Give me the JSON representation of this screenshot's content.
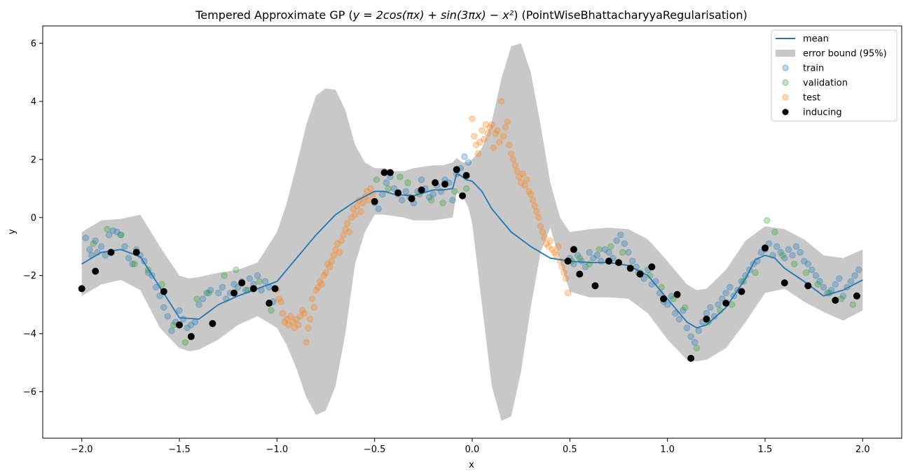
{
  "chart_data": {
    "type": "scatter",
    "title": "Tempered Approximate GP (y = 2cos(πx) + sin(3πx) − x²) (PointWiseBhattacharyyaRegularisation)",
    "title_parts": {
      "prefix": "Tempered Approximate GP (",
      "math": "y = 2cos(πx) + sin(3πx) − x²",
      "suffix": ") (PointWiseBhattacharyyaRegularisation)"
    },
    "xlabel": "x",
    "ylabel": "y",
    "xlim": [
      -2.2,
      2.2
    ],
    "ylim": [
      -7.6,
      6.6
    ],
    "xticks": [
      -2.0,
      -1.5,
      -1.0,
      -0.5,
      0.0,
      0.5,
      1.0,
      1.5,
      2.0
    ],
    "xtick_labels": [
      "−2.0",
      "−1.5",
      "−1.0",
      "−0.5",
      "0.0",
      "0.5",
      "1.0",
      "1.5",
      "2.0"
    ],
    "yticks": [
      -6,
      -4,
      -2,
      0,
      2,
      4,
      6
    ],
    "ytick_labels": [
      "−6",
      "−4",
      "−2",
      "0",
      "2",
      "4",
      "6"
    ],
    "grid": false,
    "legend_position": "top-right",
    "colors": {
      "mean": "#1f77b4",
      "band": "#c8c8c8",
      "train": "#1f77b4",
      "validation": "#2ca02c",
      "test": "#ff7f0e",
      "inducing": "#000000"
    },
    "legend": [
      {
        "name": "mean",
        "kind": "line",
        "color": "#1f77b4"
      },
      {
        "name": "error bound (95%)",
        "kind": "band",
        "color": "#c8c8c8"
      },
      {
        "name": "train",
        "kind": "scatter",
        "color": "#1f77b4"
      },
      {
        "name": "validation",
        "kind": "scatter",
        "color": "#2ca02c"
      },
      {
        "name": "test",
        "kind": "scatter",
        "color": "#ff7f0e"
      },
      {
        "name": "inducing",
        "kind": "marker",
        "color": "#000000"
      }
    ],
    "mean": {
      "name": "mean",
      "x": [
        -2.0,
        -1.9,
        -1.8,
        -1.7,
        -1.6,
        -1.5,
        -1.4,
        -1.3,
        -1.2,
        -1.1,
        -1.0,
        -0.9,
        -0.8,
        -0.7,
        -0.6,
        -0.5,
        -0.45,
        -0.4,
        -0.3,
        -0.2,
        -0.15,
        -0.1,
        -0.08,
        -0.06,
        -0.03,
        0.0,
        0.05,
        0.1,
        0.2,
        0.3,
        0.4,
        0.5,
        0.6,
        0.7,
        0.8,
        0.9,
        1.0,
        1.1,
        1.15,
        1.2,
        1.3,
        1.4,
        1.45,
        1.5,
        1.55,
        1.6,
        1.7,
        1.8,
        1.9,
        2.0
      ],
      "y": [
        -1.6,
        -1.2,
        -1.1,
        -1.35,
        -2.4,
        -3.45,
        -3.5,
        -3.0,
        -2.7,
        -2.45,
        -2.2,
        -1.4,
        -0.6,
        0.1,
        0.55,
        0.9,
        0.9,
        0.8,
        0.75,
        0.95,
        0.95,
        1.0,
        1.5,
        1.45,
        1.3,
        1.25,
        0.9,
        0.3,
        -0.5,
        -1.0,
        -1.4,
        -1.5,
        -1.55,
        -1.55,
        -1.65,
        -2.0,
        -2.8,
        -3.6,
        -3.8,
        -3.7,
        -3.1,
        -2.1,
        -1.45,
        -1.3,
        -1.4,
        -1.75,
        -2.2,
        -2.7,
        -2.5,
        -2.15
      ]
    },
    "error_band": {
      "name": "error bound (95%)",
      "x": [
        -2.0,
        -1.9,
        -1.8,
        -1.7,
        -1.6,
        -1.5,
        -1.45,
        -1.4,
        -1.3,
        -1.2,
        -1.1,
        -1.0,
        -0.95,
        -0.9,
        -0.85,
        -0.8,
        -0.75,
        -0.7,
        -0.65,
        -0.6,
        -0.55,
        -0.5,
        -0.45,
        -0.4,
        -0.35,
        -0.3,
        -0.2,
        -0.15,
        -0.1,
        -0.08,
        -0.05,
        -0.02,
        0.0,
        0.05,
        0.1,
        0.15,
        0.2,
        0.25,
        0.3,
        0.35,
        0.4,
        0.45,
        0.5,
        0.6,
        0.7,
        0.8,
        0.9,
        1.0,
        1.1,
        1.15,
        1.2,
        1.3,
        1.4,
        1.5,
        1.6,
        1.7,
        1.8,
        1.9,
        2.0
      ],
      "upper": [
        -0.5,
        -0.1,
        -0.05,
        0.1,
        -1.0,
        -2.0,
        -2.1,
        -2.05,
        -1.9,
        -1.8,
        -1.55,
        -0.5,
        0.5,
        1.8,
        3.2,
        4.2,
        4.45,
        4.4,
        3.7,
        2.5,
        1.9,
        1.7,
        1.7,
        1.6,
        1.6,
        1.7,
        1.8,
        1.8,
        1.9,
        2.05,
        1.9,
        1.9,
        2.0,
        2.4,
        3.3,
        4.8,
        5.9,
        6.0,
        5.0,
        3.2,
        1.2,
        0.0,
        -0.5,
        -0.4,
        -0.35,
        -0.4,
        -0.75,
        -1.5,
        -2.3,
        -2.5,
        -2.45,
        -1.8,
        -0.8,
        -0.3,
        -0.4,
        -0.75,
        -1.3,
        -1.4,
        -1.1
      ],
      "lower": [
        -2.7,
        -2.3,
        -2.15,
        -2.5,
        -3.8,
        -4.5,
        -4.6,
        -4.55,
        -4.2,
        -3.7,
        -3.4,
        -3.8,
        -4.4,
        -5.2,
        -6.2,
        -6.8,
        -6.65,
        -5.8,
        -4.0,
        -1.6,
        -0.5,
        0.1,
        0.1,
        0.05,
        0.0,
        -0.1,
        -0.1,
        -0.05,
        0.0,
        0.85,
        0.75,
        0.35,
        -0.2,
        -3.0,
        -5.8,
        -7.0,
        -6.85,
        -5.3,
        -3.1,
        -1.2,
        -0.35,
        -1.5,
        -2.55,
        -2.75,
        -2.75,
        -2.8,
        -3.3,
        -4.2,
        -4.9,
        -4.95,
        -4.9,
        -4.5,
        -3.6,
        -2.6,
        -2.45,
        -2.9,
        -3.25,
        -3.55,
        -3.2
      ]
    },
    "series": [
      {
        "name": "train",
        "x": [
          -1.98,
          -1.96,
          -1.95,
          -1.93,
          -1.92,
          -1.9,
          -1.88,
          -1.86,
          -1.84,
          -1.82,
          -1.8,
          -1.78,
          -1.76,
          -1.74,
          -1.72,
          -1.7,
          -1.68,
          -1.66,
          -1.64,
          -1.62,
          -1.6,
          -1.58,
          -1.56,
          -1.54,
          -1.52,
          -1.5,
          -1.48,
          -1.46,
          -1.44,
          -1.42,
          -1.4,
          -1.38,
          -1.36,
          -1.34,
          -1.3,
          -1.28,
          -1.26,
          -1.24,
          -1.22,
          -1.2,
          -1.18,
          -1.16,
          -1.14,
          -1.12,
          -1.1,
          -1.08,
          -1.06,
          -1.04,
          -1.02,
          -0.5,
          -0.48,
          -0.46,
          -0.44,
          -0.42,
          -0.4,
          -0.38,
          -0.36,
          -0.34,
          -0.32,
          -0.3,
          -0.28,
          -0.26,
          -0.24,
          -0.22,
          -0.2,
          -0.18,
          -0.16,
          -0.14,
          -0.12,
          -0.1,
          -0.08,
          -0.06,
          -0.04,
          -0.02,
          0.5,
          0.52,
          0.54,
          0.56,
          0.58,
          0.6,
          0.62,
          0.64,
          0.66,
          0.68,
          0.7,
          0.72,
          0.74,
          0.76,
          0.78,
          0.8,
          0.82,
          0.84,
          0.86,
          0.88,
          0.9,
          0.92,
          0.94,
          0.96,
          0.98,
          1.0,
          1.02,
          1.04,
          1.06,
          1.08,
          1.1,
          1.12,
          1.14,
          1.16,
          1.18,
          1.2,
          1.22,
          1.24,
          1.26,
          1.28,
          1.3,
          1.32,
          1.34,
          1.36,
          1.38,
          1.4,
          1.42,
          1.44,
          1.46,
          1.48,
          1.5,
          1.52,
          1.54,
          1.56,
          1.58,
          1.6,
          1.62,
          1.64,
          1.66,
          1.68,
          1.7,
          1.72,
          1.74,
          1.76,
          1.78,
          1.8,
          1.82,
          1.84,
          1.86,
          1.88,
          1.9,
          1.92,
          1.94,
          1.96,
          1.98
        ],
        "y": [
          -0.7,
          -1.1,
          -1.3,
          -0.8,
          -1.2,
          -1.0,
          -1.3,
          -0.6,
          -0.45,
          -0.5,
          -0.6,
          -1.0,
          -1.4,
          -1.6,
          -1.1,
          -1.3,
          -1.5,
          -1.9,
          -2.0,
          -2.4,
          -2.7,
          -3.1,
          -3.4,
          -3.9,
          -3.6,
          -3.2,
          -3.5,
          -3.8,
          -3.7,
          -3.6,
          -3.0,
          -2.8,
          -2.6,
          -2.5,
          -2.6,
          -2.4,
          -2.8,
          -2.6,
          -2.3,
          -2.4,
          -2.2,
          -2.5,
          -2.1,
          -2.3,
          -2.0,
          -2.5,
          -2.2,
          -2.4,
          -2.9,
          0.5,
          0.3,
          0.8,
          1.2,
          1.4,
          1.0,
          0.8,
          0.6,
          0.9,
          0.7,
          0.5,
          0.9,
          1.3,
          1.0,
          0.7,
          0.8,
          1.1,
          0.9,
          1.3,
          1.2,
          0.6,
          1.5,
          1.7,
          2.1,
          1.9,
          -1.4,
          -1.6,
          -1.3,
          -1.5,
          -1.7,
          -1.2,
          -1.4,
          -1.3,
          -1.5,
          -1.1,
          -1.2,
          -1.4,
          -0.8,
          -0.6,
          -0.9,
          -1.2,
          -1.5,
          -1.7,
          -1.9,
          -2.1,
          -1.8,
          -2.3,
          -2.2,
          -2.6,
          -2.9,
          -3.0,
          -2.7,
          -3.3,
          -3.5,
          -3.2,
          -3.8,
          -4.1,
          -4.3,
          -3.9,
          -3.6,
          -3.3,
          -3.1,
          -3.4,
          -3.0,
          -2.8,
          -2.6,
          -2.4,
          -2.7,
          -2.5,
          -2.2,
          -2.0,
          -1.8,
          -1.6,
          -1.5,
          -1.2,
          -1.1,
          -0.9,
          -1.3,
          -1.0,
          -1.2,
          -1.4,
          -1.1,
          -1.3,
          -1.0,
          -1.2,
          -1.5,
          -1.6,
          -1.8,
          -2.0,
          -2.2,
          -2.4,
          -2.6,
          -2.5,
          -2.3,
          -2.1,
          -2.7,
          -2.4,
          -2.2,
          -2.0,
          -1.8
        ]
      },
      {
        "name": "validation",
        "x": [
          -1.94,
          -1.87,
          -1.8,
          -1.73,
          -1.66,
          -1.59,
          -1.53,
          -1.47,
          -1.41,
          -1.35,
          -1.27,
          -1.21,
          -1.15,
          -1.09,
          -1.03,
          -0.49,
          -0.43,
          -0.37,
          -0.33,
          -0.27,
          -0.21,
          -0.15,
          -0.09,
          -0.03,
          0.51,
          0.55,
          0.6,
          0.65,
          0.71,
          0.77,
          0.85,
          0.91,
          0.97,
          1.03,
          1.09,
          1.15,
          1.21,
          1.27,
          1.33,
          1.39,
          1.45,
          1.51,
          1.55,
          1.59,
          1.65,
          1.71,
          1.77,
          1.83,
          1.89,
          1.95
        ],
        "y": [
          -0.9,
          -0.4,
          -0.6,
          -1.6,
          -1.8,
          -2.3,
          -3.7,
          -4.3,
          -2.8,
          -2.6,
          -2.0,
          -1.8,
          -2.5,
          -2.2,
          -3.2,
          1.3,
          1.0,
          1.4,
          1.2,
          0.8,
          0.6,
          0.5,
          0.9,
          1.0,
          -1.5,
          -1.4,
          -1.6,
          -1.1,
          -1.0,
          -1.2,
          -1.9,
          -2.0,
          -2.4,
          -2.8,
          -3.1,
          -4.5,
          -3.6,
          -3.2,
          -3.0,
          -2.2,
          -1.9,
          -0.1,
          -0.5,
          -1.3,
          -1.6,
          -1.9,
          -2.3,
          -2.6,
          -2.8,
          -3.0
        ]
      },
      {
        "name": "test",
        "x": [
          -1.0,
          -0.99,
          -0.98,
          -0.97,
          -0.96,
          -0.95,
          -0.94,
          -0.93,
          -0.92,
          -0.91,
          -0.9,
          -0.89,
          -0.88,
          -0.87,
          -0.86,
          -0.85,
          -0.84,
          -0.83,
          -0.82,
          -0.81,
          -0.8,
          -0.79,
          -0.78,
          -0.77,
          -0.76,
          -0.75,
          -0.74,
          -0.73,
          -0.72,
          -0.71,
          -0.7,
          -0.69,
          -0.68,
          -0.67,
          -0.66,
          -0.65,
          -0.64,
          -0.63,
          -0.62,
          -0.61,
          -0.6,
          -0.59,
          -0.58,
          -0.57,
          -0.56,
          -0.55,
          -0.54,
          -0.53,
          -0.52,
          -0.51,
          0.0,
          0.01,
          0.02,
          0.03,
          0.04,
          0.05,
          0.06,
          0.07,
          0.08,
          0.09,
          0.1,
          0.11,
          0.12,
          0.13,
          0.14,
          0.15,
          0.16,
          0.17,
          0.18,
          0.19,
          0.2,
          0.21,
          0.22,
          0.23,
          0.24,
          0.25,
          0.26,
          0.27,
          0.28,
          0.29,
          0.3,
          0.31,
          0.32,
          0.33,
          0.34,
          0.35,
          0.36,
          0.37,
          0.38,
          0.39,
          0.4,
          0.41,
          0.42,
          0.43,
          0.44,
          0.45,
          0.46,
          0.47,
          0.48,
          0.49
        ],
        "y": [
          -2.5,
          -2.8,
          -2.9,
          -3.3,
          -3.6,
          -3.5,
          -3.7,
          -3.4,
          -3.6,
          -3.8,
          -3.5,
          -3.7,
          -3.4,
          -3.2,
          -3.3,
          -4.3,
          -3.8,
          -3.5,
          -2.8,
          -3.1,
          -2.5,
          -2.4,
          -2.2,
          -2.3,
          -2.0,
          -1.9,
          -1.6,
          -1.7,
          -1.5,
          -1.3,
          -1.1,
          -0.9,
          -1.2,
          -0.8,
          -0.6,
          -0.4,
          -0.2,
          -0.5,
          0.0,
          0.3,
          0.1,
          0.4,
          0.6,
          0.2,
          0.5,
          0.7,
          0.9,
          0.6,
          1.0,
          0.8,
          3.4,
          2.8,
          2.5,
          2.2,
          2.6,
          3.0,
          2.7,
          3.2,
          2.9,
          3.1,
          3.2,
          2.4,
          2.9,
          3.0,
          2.6,
          4.0,
          2.8,
          3.1,
          3.3,
          2.5,
          2.2,
          2.0,
          1.8,
          1.6,
          1.4,
          1.2,
          1.5,
          1.1,
          1.3,
          0.9,
          0.8,
          0.6,
          0.4,
          0.2,
          0.0,
          -0.3,
          -0.5,
          -0.7,
          -0.9,
          -1.0,
          -0.8,
          -1.1,
          -1.2,
          -1.3,
          -1.0,
          -1.5,
          -1.7,
          -1.9,
          -2.1,
          -2.6
        ]
      },
      {
        "name": "inducing",
        "x": [
          -2.0,
          -1.93,
          -1.85,
          -1.72,
          -1.58,
          -1.5,
          -1.44,
          -1.33,
          -1.22,
          -1.18,
          -1.12,
          -1.04,
          -1.01,
          -0.5,
          -0.45,
          -0.42,
          -0.38,
          -0.31,
          -0.26,
          -0.19,
          -0.14,
          -0.08,
          -0.05,
          -0.03,
          0.49,
          0.52,
          0.55,
          0.63,
          0.7,
          0.75,
          0.81,
          0.86,
          0.92,
          0.98,
          1.05,
          1.12,
          1.2,
          1.3,
          1.38,
          1.5,
          1.6,
          1.72,
          1.86,
          1.97
        ],
        "y": [
          -2.45,
          -1.85,
          -1.2,
          -1.2,
          -2.55,
          -3.7,
          -4.1,
          -3.65,
          -2.6,
          -2.25,
          -2.45,
          -2.95,
          -2.45,
          0.55,
          1.55,
          1.55,
          0.85,
          0.65,
          0.95,
          1.2,
          1.15,
          1.65,
          0.75,
          1.45,
          -1.5,
          -1.1,
          -1.95,
          -2.35,
          -1.5,
          -1.55,
          -1.75,
          -1.95,
          -1.7,
          -2.8,
          -2.65,
          -4.85,
          -3.5,
          -2.95,
          -2.55,
          -1.05,
          -2.25,
          -2.35,
          -2.85,
          -2.7
        ]
      }
    ]
  }
}
